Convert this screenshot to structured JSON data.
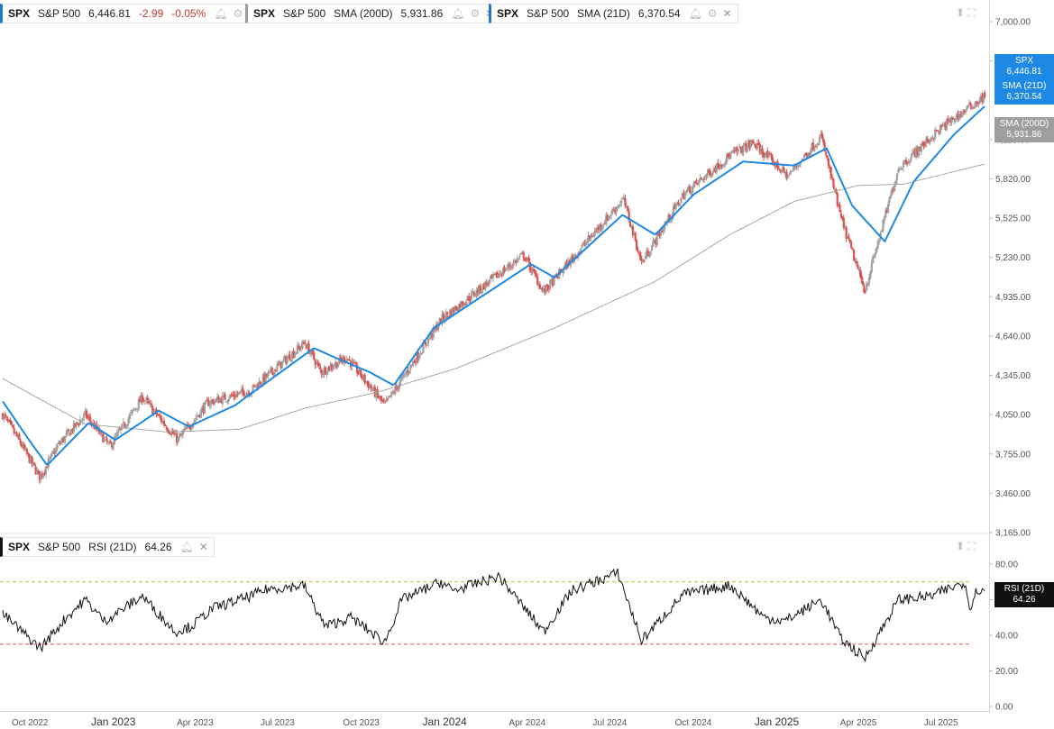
{
  "legends": {
    "spx": {
      "symbol": "SPX",
      "name": "S&P 500",
      "price": "6,446.81",
      "change": "-2.99",
      "pct": "-0.05%"
    },
    "sma200": {
      "symbol": "SPX",
      "name": "S&P 500",
      "indicator": "SMA (200D)",
      "value": "5,931.86"
    },
    "sma21": {
      "symbol": "SPX",
      "name": "S&P 500",
      "indicator": "SMA (21D)",
      "value": "6,370.54"
    },
    "rsi": {
      "symbol": "SPX",
      "name": "S&P 500",
      "indicator": "RSI (21D)",
      "value": "64.26"
    }
  },
  "tags": {
    "spx": {
      "label": "SPX",
      "value": "6,446.81"
    },
    "sma21": {
      "label": "SMA (21D)",
      "value": "6,370.54"
    },
    "sma200": {
      "label": "SMA (200D)",
      "value": "5,931.86"
    },
    "rsi": {
      "label": "RSI (21D)",
      "value": "64.26"
    }
  },
  "icons": {
    "indicator": "bell-icon",
    "settings": "gear-icon",
    "close": "close-icon",
    "pane_up": "arrow-up-icon",
    "expand": "expand-icon"
  },
  "colors": {
    "up": "#a0a0a0",
    "down": "#d9534f",
    "sma21": "#1e88e5",
    "sma200": "#9e9e9e",
    "rsi": "#111111",
    "overbought": "#9acd32",
    "oversold": "#e05555"
  },
  "chart_data": [
    {
      "type": "candlestick",
      "title": "SPX S&P 500",
      "x_tick_labels": [
        "Oct 2022",
        "Jan 2023",
        "Apr 2023",
        "Jul 2023",
        "Oct 2023",
        "Jan 2024",
        "Apr 2024",
        "Jul 2024",
        "Oct 2024",
        "Jan 2025",
        "Apr 2025",
        "Jul 2025"
      ],
      "y_tick_labels": [
        "7,000.00",
        "6,705.00",
        "6,115.00",
        "5,820.00",
        "5,525.00",
        "5,230.00",
        "4,935.00",
        "4,640.00",
        "4,345.00",
        "4,050.00",
        "3,755.00",
        "3,460.00",
        "3,165.00"
      ],
      "ylim": [
        3165,
        7000
      ],
      "x_range": [
        "2022-09-01",
        "2025-08-20"
      ],
      "series": [
        {
          "name": "SPX",
          "price_path": [
            [
              "2022-09-01",
              4050
            ],
            [
              "2022-09-15",
              3900
            ],
            [
              "2022-10-12",
              3580
            ],
            [
              "2022-11-01",
              3820
            ],
            [
              "2022-12-01",
              4050
            ],
            [
              "2022-12-28",
              3810
            ],
            [
              "2023-02-02",
              4180
            ],
            [
              "2023-03-13",
              3860
            ],
            [
              "2023-04-15",
              4140
            ],
            [
              "2023-06-01",
              4230
            ],
            [
              "2023-07-31",
              4590
            ],
            [
              "2023-08-18",
              4370
            ],
            [
              "2023-09-15",
              4480
            ],
            [
              "2023-10-27",
              4120
            ],
            [
              "2023-12-29",
              4770
            ],
            [
              "2024-03-28",
              5250
            ],
            [
              "2024-04-19",
              4970
            ],
            [
              "2024-07-16",
              5670
            ],
            [
              "2024-08-05",
              5190
            ],
            [
              "2024-09-20",
              5700
            ],
            [
              "2024-11-11",
              6000
            ],
            [
              "2024-12-06",
              6090
            ],
            [
              "2025-01-13",
              5840
            ],
            [
              "2025-02-19",
              6140
            ],
            [
              "2025-03-13",
              5520
            ],
            [
              "2025-04-08",
              4980
            ],
            [
              "2025-05-15",
              5900
            ],
            [
              "2025-07-01",
              6200
            ],
            [
              "2025-08-19",
              6446.81
            ]
          ]
        },
        {
          "name": "SMA (21D)",
          "path": [
            [
              "2022-09-01",
              4150
            ],
            [
              "2022-10-01",
              3850
            ],
            [
              "2022-10-20",
              3670
            ],
            [
              "2022-12-05",
              3990
            ],
            [
              "2023-01-03",
              3860
            ],
            [
              "2023-02-20",
              4080
            ],
            [
              "2023-03-25",
              3960
            ],
            [
              "2023-05-15",
              4120
            ],
            [
              "2023-08-10",
              4550
            ],
            [
              "2023-09-05",
              4470
            ],
            [
              "2023-10-10",
              4370
            ],
            [
              "2023-11-06",
              4270
            ],
            [
              "2023-12-20",
              4700
            ],
            [
              "2024-04-05",
              5180
            ],
            [
              "2024-05-01",
              5080
            ],
            [
              "2024-07-15",
              5550
            ],
            [
              "2024-08-20",
              5400
            ],
            [
              "2024-10-01",
              5700
            ],
            [
              "2024-11-25",
              5950
            ],
            [
              "2025-01-20",
              5920
            ],
            [
              "2025-02-25",
              6050
            ],
            [
              "2025-03-25",
              5620
            ],
            [
              "2025-04-30",
              5350
            ],
            [
              "2025-06-01",
              5800
            ],
            [
              "2025-07-15",
              6150
            ],
            [
              "2025-08-19",
              6370.54
            ]
          ]
        },
        {
          "name": "SMA (200D)",
          "path": [
            [
              "2022-09-01",
              4320
            ],
            [
              "2022-12-01",
              3980
            ],
            [
              "2023-03-01",
              3920
            ],
            [
              "2023-05-20",
              3940
            ],
            [
              "2023-08-01",
              4100
            ],
            [
              "2023-10-20",
              4220
            ],
            [
              "2024-01-15",
              4400
            ],
            [
              "2024-05-01",
              4700
            ],
            [
              "2024-08-20",
              5050
            ],
            [
              "2024-11-10",
              5400
            ],
            [
              "2025-01-20",
              5650
            ],
            [
              "2025-04-01",
              5770
            ],
            [
              "2025-05-20",
              5780
            ],
            [
              "2025-08-19",
              5931.86
            ]
          ]
        }
      ]
    },
    {
      "type": "line",
      "title": "SPX S&P 500 RSI (21D)",
      "y_tick_labels": [
        "80.00",
        "60.00",
        "40.00",
        "20.00",
        "0.00"
      ],
      "ylim": [
        0,
        80
      ],
      "levels": {
        "overbought": 70,
        "oversold": 35
      },
      "series": [
        {
          "name": "RSI (21D)",
          "path": [
            [
              "2022-09-01",
              52
            ],
            [
              "2022-10-05",
              36
            ],
            [
              "2022-10-13",
              33
            ],
            [
              "2022-11-10",
              50
            ],
            [
              "2022-12-01",
              60
            ],
            [
              "2022-12-22",
              48
            ],
            [
              "2023-02-02",
              62
            ],
            [
              "2023-03-10",
              42
            ],
            [
              "2023-03-28",
              45
            ],
            [
              "2023-04-20",
              55
            ],
            [
              "2023-06-01",
              62
            ],
            [
              "2023-06-20",
              66
            ],
            [
              "2023-07-30",
              68
            ],
            [
              "2023-08-22",
              45
            ],
            [
              "2023-09-20",
              50
            ],
            [
              "2023-10-27",
              36
            ],
            [
              "2023-11-15",
              60
            ],
            [
              "2023-12-28",
              70
            ],
            [
              "2024-01-10",
              65
            ],
            [
              "2024-03-01",
              73
            ],
            [
              "2024-04-19",
              42
            ],
            [
              "2024-05-20",
              65
            ],
            [
              "2024-07-10",
              75
            ],
            [
              "2024-08-05",
              37
            ],
            [
              "2024-09-20",
              63
            ],
            [
              "2024-11-11",
              68
            ],
            [
              "2024-12-18",
              50
            ],
            [
              "2025-01-10",
              48
            ],
            [
              "2025-02-19",
              60
            ],
            [
              "2025-03-13",
              38
            ],
            [
              "2025-04-08",
              27
            ],
            [
              "2025-05-15",
              60
            ],
            [
              "2025-06-20",
              62
            ],
            [
              "2025-07-28",
              70
            ],
            [
              "2025-08-01",
              55
            ],
            [
              "2025-08-10",
              66
            ],
            [
              "2025-08-19",
              64.26
            ]
          ]
        }
      ]
    }
  ]
}
